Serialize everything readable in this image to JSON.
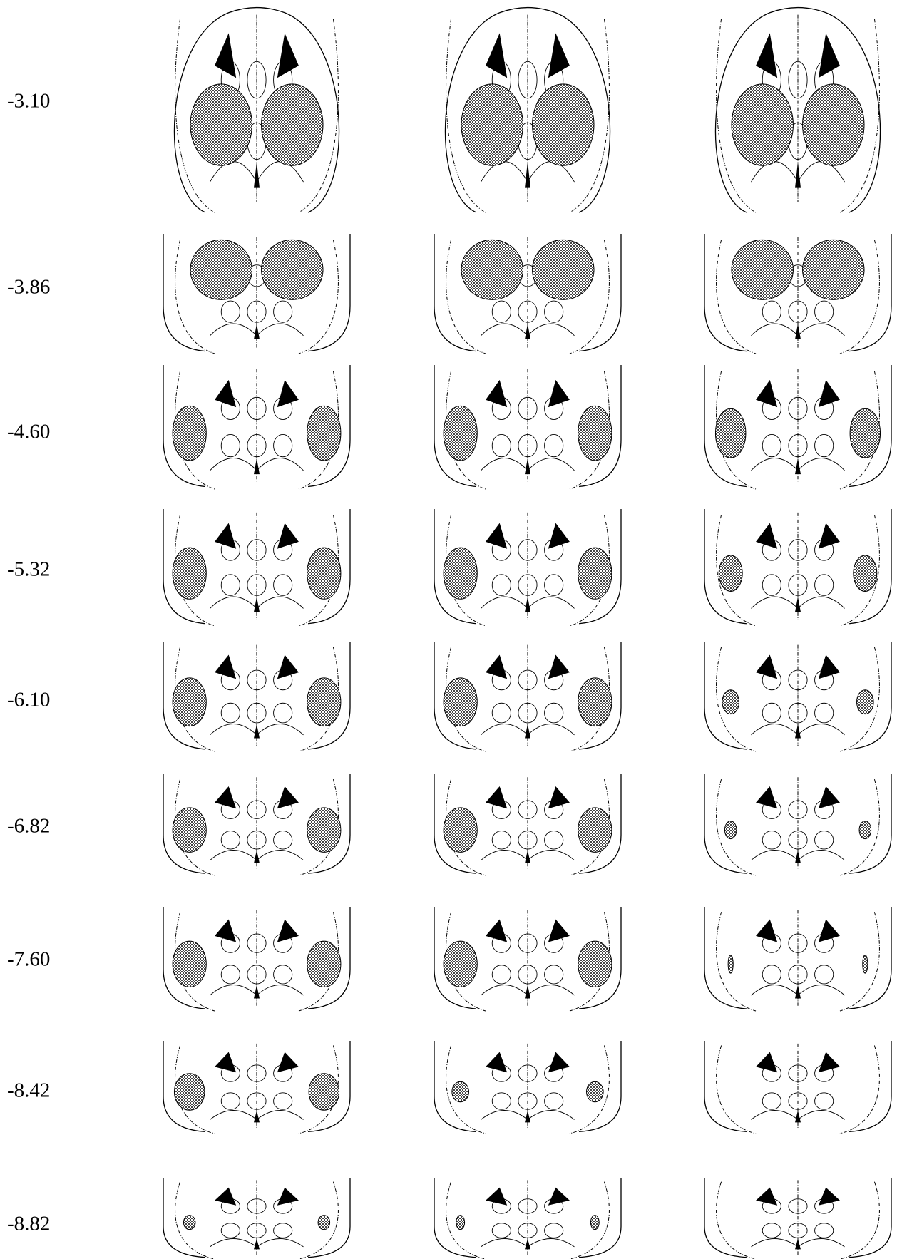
{
  "sections": [
    {
      "label": "-3.10"
    },
    {
      "label": "-3.86"
    },
    {
      "label": "-4.60"
    },
    {
      "label": "-5.32"
    },
    {
      "label": "-6.10"
    },
    {
      "label": "-6.82"
    },
    {
      "label": "-7.60"
    },
    {
      "label": "-8.42"
    },
    {
      "label": "-8.82"
    }
  ]
}
